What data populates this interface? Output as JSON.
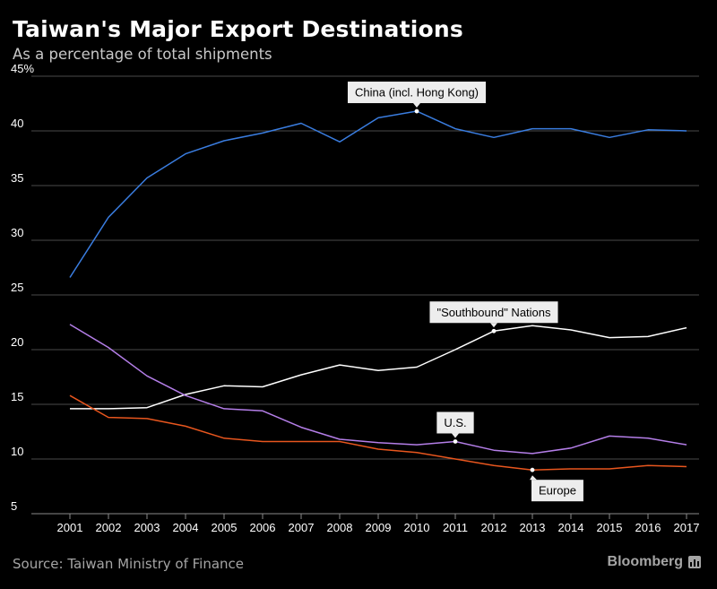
{
  "header": {
    "title": "Taiwan's Major Export Destinations",
    "subtitle": "As a percentage of total shipments"
  },
  "footer": {
    "source": "Source: Taiwan Ministry of Finance",
    "brand": "Bloomberg"
  },
  "colors": {
    "background": "#000000",
    "gridline": "#4a4a4a",
    "annotation_box": "#ededed"
  },
  "chart_data": {
    "type": "line",
    "title": "Taiwan's Major Export Destinations",
    "subtitle": "As a percentage of total shipments",
    "x": [
      2001,
      2002,
      2003,
      2004,
      2005,
      2006,
      2007,
      2008,
      2009,
      2010,
      2011,
      2012,
      2013,
      2014,
      2015,
      2016,
      2017
    ],
    "y_ticks": [
      "45%",
      "40",
      "35",
      "30",
      "25",
      "20",
      "15",
      "10",
      "5"
    ],
    "ylim": [
      5,
      45
    ],
    "grid": true,
    "series": [
      {
        "name": "China (incl. Hong Kong)",
        "color": "#3a7de0",
        "values": [
          26.6,
          32.1,
          35.7,
          37.9,
          39.1,
          39.8,
          40.7,
          39.0,
          41.2,
          41.8,
          40.2,
          39.4,
          40.2,
          40.2,
          39.4,
          40.1,
          40.0
        ],
        "annotation_year": 2010
      },
      {
        "name": "\"Southbound\" Nations",
        "color": "#ffffff",
        "values": [
          14.6,
          14.6,
          14.7,
          15.9,
          16.7,
          16.6,
          17.7,
          18.6,
          18.1,
          18.4,
          20.0,
          21.7,
          22.2,
          21.8,
          21.1,
          21.2,
          22.0
        ],
        "annotation_year": 2012
      },
      {
        "name": "U.S.",
        "color": "#b47ee8",
        "values": [
          22.3,
          20.2,
          17.6,
          15.8,
          14.6,
          14.4,
          12.9,
          11.8,
          11.5,
          11.3,
          11.6,
          10.8,
          10.5,
          11.0,
          12.1,
          11.9,
          11.3
        ],
        "annotation_year": 2011
      },
      {
        "name": "Europe",
        "color": "#e8561e",
        "values": [
          15.8,
          13.8,
          13.7,
          13.0,
          11.9,
          11.6,
          11.6,
          11.6,
          10.9,
          10.6,
          10.0,
          9.4,
          9.0,
          9.1,
          9.1,
          9.4,
          9.3
        ],
        "annotation_year": 2013
      }
    ]
  }
}
